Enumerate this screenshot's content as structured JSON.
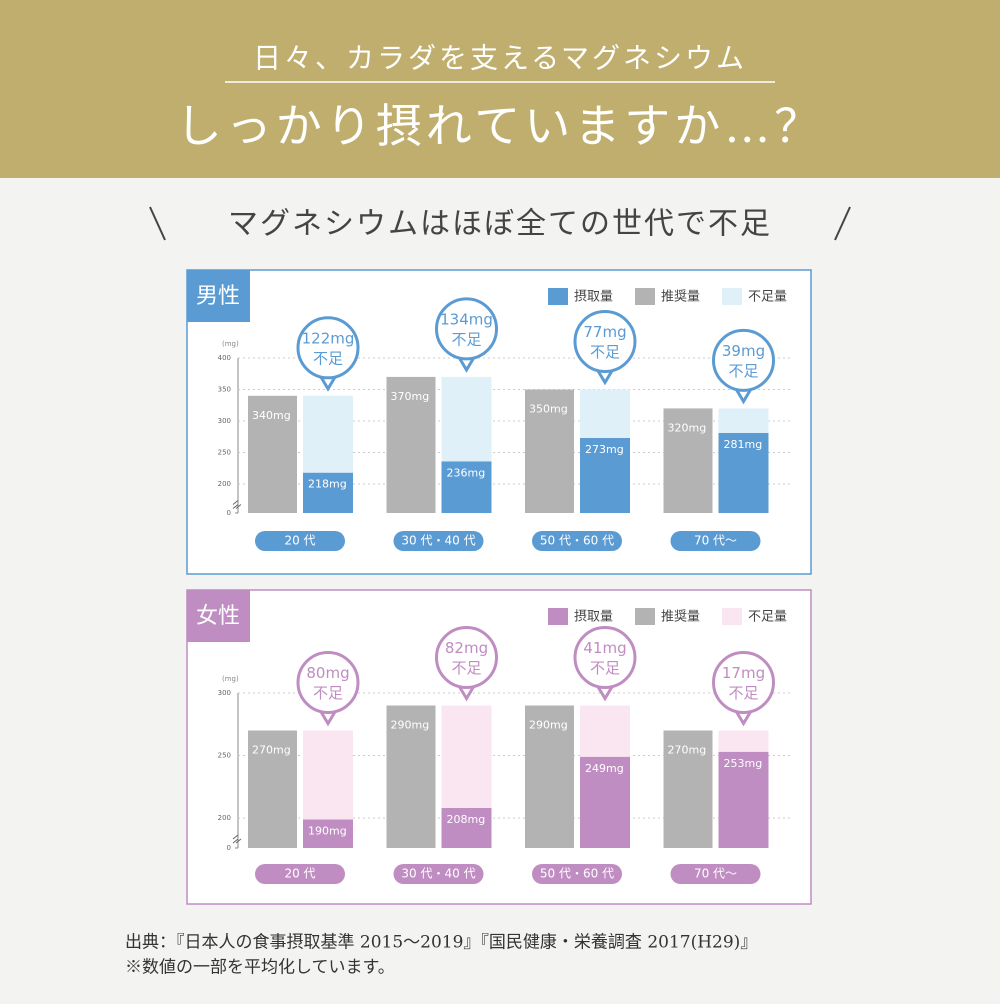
{
  "header": {
    "kicker": "日々、カラダを支えるマグネシウム",
    "title": "しっかり摂れていますか…？"
  },
  "headline": "マグネシウムはほぼ全ての世代で不足",
  "chart_data": [
    {
      "type": "bar",
      "title": "男性",
      "y_label": "(mg)",
      "categories": [
        "20 代",
        "30 代・40 代",
        "50 代・60 代",
        "70 代〜"
      ],
      "series": [
        {
          "name": "摂取量",
          "color": "#5b9bd3",
          "values": [
            218,
            236,
            273,
            281
          ],
          "value_labels": [
            "218mg",
            "236mg",
            "273mg",
            "281mg"
          ]
        },
        {
          "name": "推奨量",
          "color": "#b3b3b3",
          "values": [
            340,
            370,
            350,
            320
          ],
          "value_labels": [
            "340mg",
            "370mg",
            "350mg",
            "320mg"
          ]
        },
        {
          "name": "不足量",
          "color": "#dff0f9",
          "values": [
            122,
            134,
            77,
            39
          ],
          "value_labels": [
            "122mg",
            "134mg",
            "77mg",
            "39mg"
          ]
        }
      ],
      "callout_label": "不足",
      "ylim": [
        0,
        400
      ],
      "yticks": [
        0,
        200,
        250,
        300,
        350,
        400
      ],
      "axis_break": true,
      "grid": true
    },
    {
      "type": "bar",
      "title": "女性",
      "y_label": "(mg)",
      "categories": [
        "20 代",
        "30 代・40 代",
        "50 代・60 代",
        "70 代〜"
      ],
      "series": [
        {
          "name": "摂取量",
          "color": "#c08dc2",
          "values": [
            190,
            208,
            249,
            253
          ],
          "value_labels": [
            "190mg",
            "208mg",
            "249mg",
            "253mg"
          ]
        },
        {
          "name": "推奨量",
          "color": "#b3b3b3",
          "values": [
            270,
            290,
            290,
            270
          ],
          "value_labels": [
            "270mg",
            "290mg",
            "290mg",
            "270mg"
          ]
        },
        {
          "name": "不足量",
          "color": "#fae6f0",
          "values": [
            80,
            82,
            41,
            17
          ],
          "value_labels": [
            "80mg",
            "82mg",
            "41mg",
            "17mg"
          ]
        }
      ],
      "callout_label": "不足",
      "ylim": [
        0,
        300
      ],
      "yticks": [
        0,
        200,
        250,
        300
      ],
      "axis_break": true,
      "grid": true
    }
  ],
  "footnotes": [
    "出典：『日本人の食事摂取基準 2015～2019』『国民健康・栄養調査 2017(H29)』",
    "※数値の一部を平均化しています。"
  ]
}
